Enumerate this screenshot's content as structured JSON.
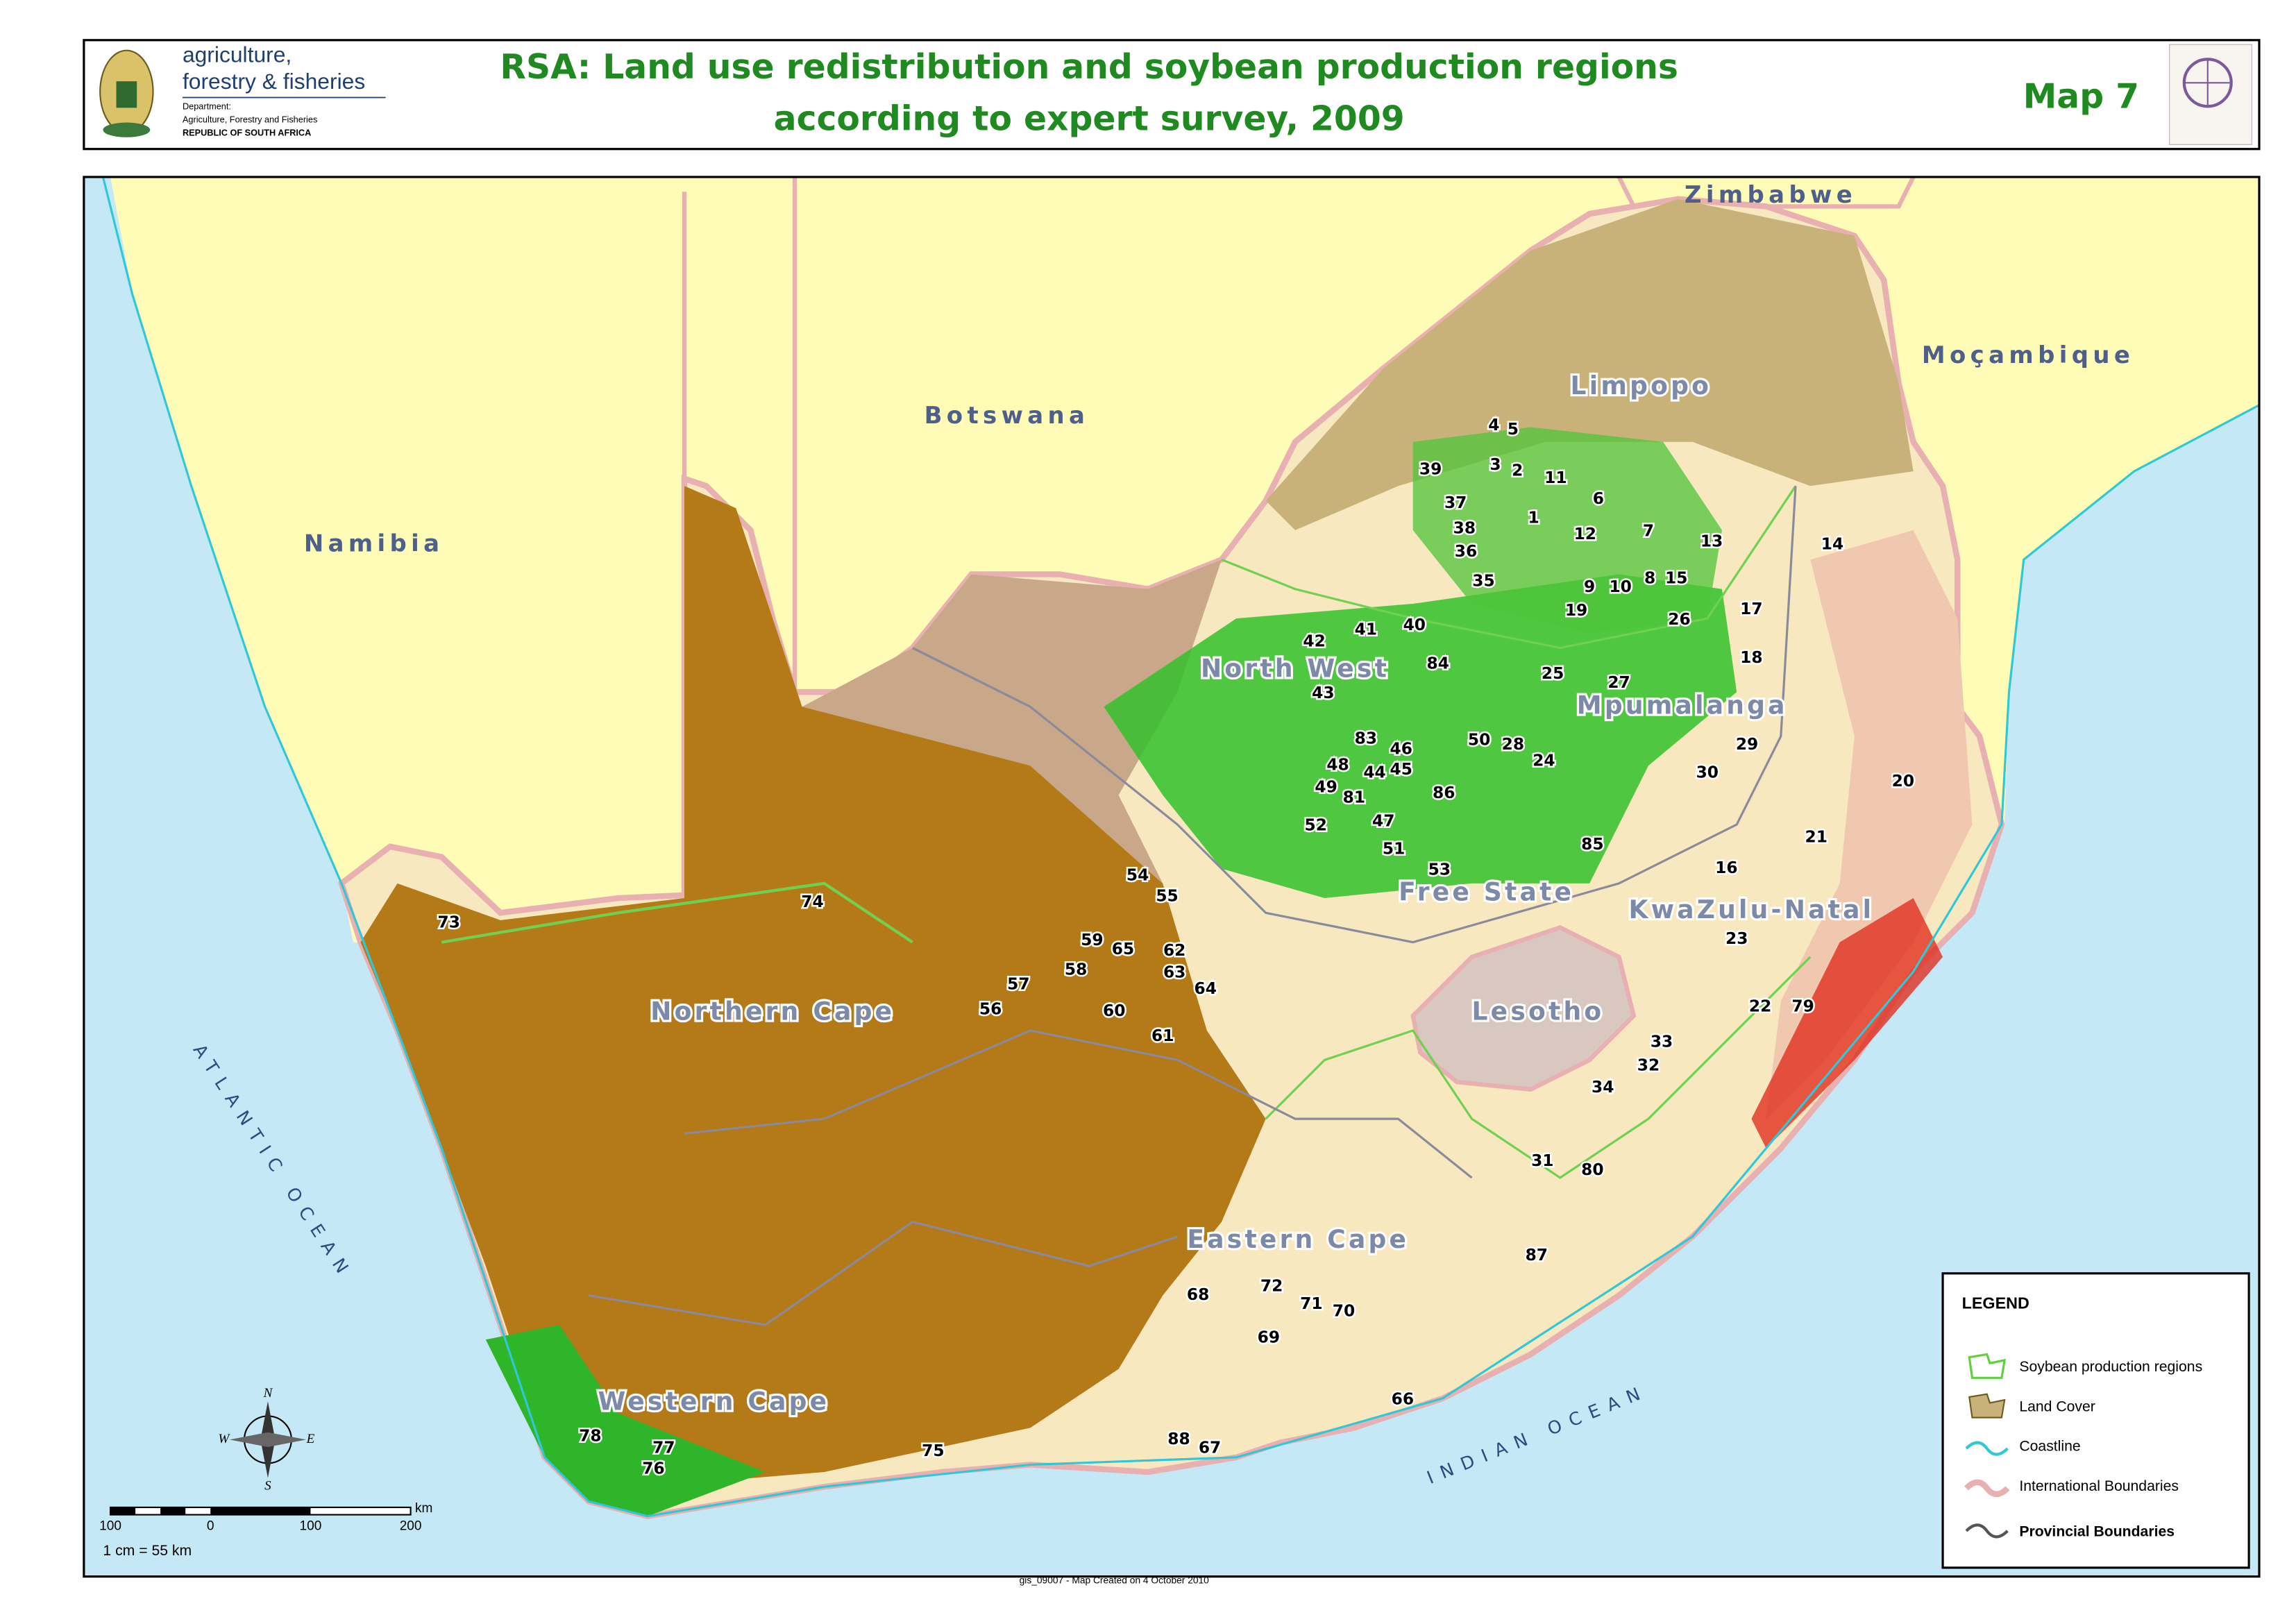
{
  "header": {
    "logo": {
      "line1": "agriculture,",
      "line2": "forestry & fisheries",
      "dept": "Department:",
      "dept_name": "Agriculture, Forestry and Fisheries",
      "country": "REPUBLIC OF SOUTH AFRICA"
    },
    "title": [
      "RSA: Land use redistribution and soybean production regions",
      "according to expert survey, 2009"
    ],
    "map_number": "Map 7"
  },
  "map": {
    "countries": [
      "Zimbabwe",
      "Moçambique",
      "Botswana",
      "Namibia"
    ],
    "provinces": [
      "Limpopo",
      "North West",
      "Mpumalanga",
      "Free State",
      "KwaZulu-Natal",
      "Lesotho",
      "Northern Cape",
      "Eastern Cape",
      "Western Cape"
    ],
    "oceans": [
      "ATLANTIC OCEAN",
      "INDIAN OCEAN"
    ],
    "regions": [
      4,
      5,
      3,
      2,
      11,
      39,
      37,
      6,
      1,
      38,
      12,
      7,
      13,
      14,
      36,
      35,
      9,
      10,
      8,
      15,
      19,
      17,
      26,
      41,
      40,
      42,
      84,
      18,
      25,
      27,
      43,
      83,
      46,
      50,
      28,
      24,
      29,
      48,
      44,
      45,
      30,
      20,
      49,
      81,
      86,
      47,
      52,
      21,
      51,
      85,
      53,
      16,
      54,
      55,
      74,
      73,
      23,
      59,
      65,
      62,
      58,
      63,
      64,
      57,
      56,
      60,
      22,
      79,
      61,
      33,
      32,
      34,
      31,
      80,
      87,
      72,
      68,
      71,
      70,
      69,
      66,
      78,
      77,
      76,
      75,
      88,
      67
    ]
  },
  "legend": {
    "title": "LEGEND",
    "items": [
      "Soybean production regions",
      "Land Cover",
      "Coastline",
      "International Boundaries",
      "Provincial Boundaries"
    ]
  },
  "compass": [
    "N",
    "E",
    "S",
    "W"
  ],
  "scale": {
    "ticks": [
      "100",
      "0",
      "100",
      "200"
    ],
    "unit": "km",
    "ratio": "1 cm = 55 km"
  },
  "footer": "gis_09007 - Map Created on 4 October 2010"
}
